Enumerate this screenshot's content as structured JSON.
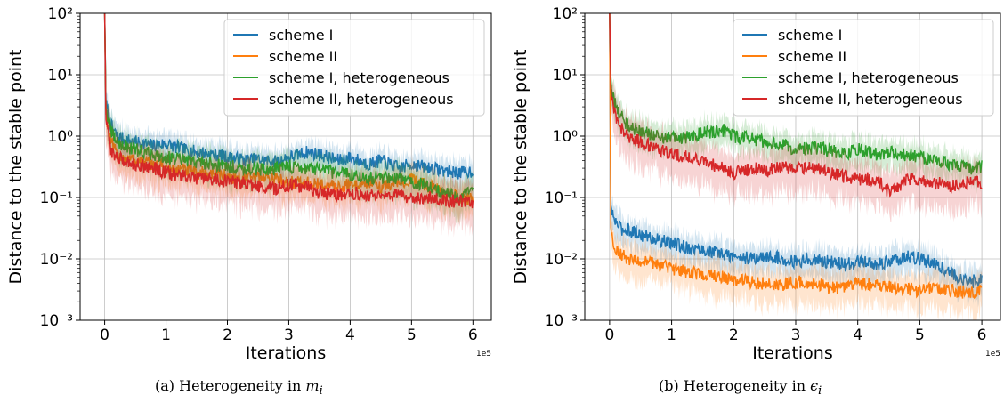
{
  "colors": {
    "scheme_I": "#1f77b4",
    "scheme_II": "#ff7f0e",
    "scheme_I_het": "#2ca02c",
    "scheme_II_het": "#d62728"
  },
  "captions": [
    {
      "prefix": "(a)  Heterogeneity in ",
      "var": "m",
      "sub": "i"
    },
    {
      "prefix": "(b)  Heterogeneity in ",
      "var": "ϵ",
      "sub": "i"
    }
  ],
  "chart_data": [
    {
      "type": "line",
      "xlabel": "Iterations",
      "ylabel": "Distance to the stable point",
      "x_offset_label": "1e5",
      "xlim": [
        -0.4,
        6.3
      ],
      "ylim_log10": [
        -3,
        2
      ],
      "yscale": "log",
      "grid": true,
      "legend_position": "top-right",
      "x_ticks": [
        0,
        1,
        2,
        3,
        4,
        5,
        6
      ],
      "x_tick_labels": [
        "0",
        "1",
        "2",
        "3",
        "4",
        "5",
        "6"
      ],
      "y_ticks_log10": [
        -3,
        -2,
        -1,
        0,
        1,
        2
      ],
      "y_tick_labels": [
        "10⁻³",
        "10⁻²",
        "10⁻¹",
        "10⁰",
        "10¹",
        "10²"
      ],
      "series": [
        {
          "name": "scheme I",
          "color_key": "scheme_I",
          "band": 0.18,
          "x": [
            0,
            0.02,
            0.05,
            0.1,
            0.2,
            0.3,
            0.5,
            0.8,
            1.0,
            1.3,
            1.5,
            1.8,
            2.0,
            2.3,
            2.5,
            2.8,
            3.0,
            3.3,
            3.5,
            3.8,
            4.0,
            4.3,
            4.5,
            4.8,
            5.0,
            5.3,
            5.5,
            5.8,
            6.0
          ],
          "y": [
            100,
            3.5,
            2.5,
            1.5,
            1.0,
            0.9,
            0.8,
            0.7,
            0.75,
            0.6,
            0.55,
            0.5,
            0.45,
            0.4,
            0.42,
            0.38,
            0.45,
            0.55,
            0.5,
            0.4,
            0.45,
            0.35,
            0.4,
            0.3,
            0.35,
            0.3,
            0.28,
            0.25,
            0.27
          ]
        },
        {
          "name": "scheme II",
          "color_key": "scheme_II",
          "band": 0.22,
          "x": [
            0,
            0.02,
            0.05,
            0.1,
            0.2,
            0.3,
            0.5,
            0.8,
            1.0,
            1.3,
            1.5,
            1.8,
            2.0,
            2.3,
            2.5,
            2.8,
            3.0,
            3.3,
            3.5,
            3.8,
            4.0,
            4.3,
            4.5,
            4.8,
            5.0,
            5.3,
            5.5,
            5.8,
            6.0
          ],
          "y": [
            100,
            2.5,
            1.5,
            0.8,
            0.5,
            0.45,
            0.4,
            0.35,
            0.3,
            0.28,
            0.25,
            0.25,
            0.22,
            0.2,
            0.22,
            0.2,
            0.18,
            0.17,
            0.16,
            0.15,
            0.16,
            0.17,
            0.15,
            0.18,
            0.2,
            0.15,
            0.12,
            0.1,
            0.09
          ]
        },
        {
          "name": "scheme I, heterogeneous",
          "color_key": "scheme_I_het",
          "band": 0.22,
          "x": [
            0,
            0.02,
            0.05,
            0.1,
            0.2,
            0.3,
            0.5,
            0.8,
            1.0,
            1.3,
            1.5,
            1.8,
            2.0,
            2.3,
            2.5,
            2.8,
            3.0,
            3.3,
            3.5,
            3.8,
            4.0,
            4.3,
            4.5,
            4.8,
            5.0,
            5.3,
            5.5,
            5.8,
            6.0
          ],
          "y": [
            100,
            3.0,
            2.0,
            1.2,
            0.8,
            0.7,
            0.6,
            0.5,
            0.45,
            0.4,
            0.38,
            0.35,
            0.32,
            0.3,
            0.28,
            0.3,
            0.32,
            0.3,
            0.28,
            0.25,
            0.24,
            0.2,
            0.22,
            0.2,
            0.18,
            0.15,
            0.12,
            0.1,
            0.14
          ]
        },
        {
          "name": "scheme II, heterogeneous",
          "color_key": "scheme_II_het",
          "band": 0.28,
          "x": [
            0,
            0.02,
            0.05,
            0.1,
            0.2,
            0.3,
            0.5,
            0.8,
            1.0,
            1.3,
            1.5,
            1.8,
            2.0,
            2.3,
            2.5,
            2.8,
            3.0,
            3.3,
            3.5,
            3.8,
            4.0,
            4.3,
            4.5,
            4.8,
            5.0,
            5.3,
            5.5,
            5.8,
            6.0
          ],
          "y": [
            100,
            2.0,
            1.2,
            0.6,
            0.45,
            0.4,
            0.35,
            0.3,
            0.25,
            0.22,
            0.2,
            0.2,
            0.18,
            0.17,
            0.15,
            0.14,
            0.16,
            0.15,
            0.12,
            0.11,
            0.12,
            0.11,
            0.1,
            0.11,
            0.1,
            0.1,
            0.09,
            0.085,
            0.08
          ]
        }
      ]
    },
    {
      "type": "line",
      "xlabel": "Iterations",
      "ylabel": "Distance to the stable point",
      "x_offset_label": "1e5",
      "xlim": [
        -0.4,
        6.3
      ],
      "ylim_log10": [
        -3,
        2
      ],
      "yscale": "log",
      "grid": true,
      "legend_position": "top-right",
      "x_ticks": [
        0,
        1,
        2,
        3,
        4,
        5,
        6
      ],
      "x_tick_labels": [
        "0",
        "1",
        "2",
        "3",
        "4",
        "5",
        "6"
      ],
      "y_ticks_log10": [
        -3,
        -2,
        -1,
        0,
        1,
        2
      ],
      "y_tick_labels": [
        "10⁻³",
        "10⁻²",
        "10⁻¹",
        "10⁰",
        "10¹",
        "10²"
      ],
      "series": [
        {
          "name": "scheme I",
          "color_key": "scheme_I",
          "band": 0.2,
          "x": [
            0,
            0.02,
            0.05,
            0.1,
            0.2,
            0.3,
            0.5,
            0.8,
            1.0,
            1.3,
            1.5,
            1.8,
            2.0,
            2.3,
            2.5,
            2.8,
            3.0,
            3.3,
            3.5,
            3.8,
            4.0,
            4.3,
            4.5,
            4.8,
            5.0,
            5.3,
            5.5,
            5.8,
            6.0
          ],
          "y": [
            100,
            0.07,
            0.05,
            0.04,
            0.03,
            0.03,
            0.025,
            0.02,
            0.018,
            0.015,
            0.014,
            0.012,
            0.011,
            0.01,
            0.011,
            0.01,
            0.009,
            0.01,
            0.009,
            0.008,
            0.009,
            0.008,
            0.009,
            0.011,
            0.01,
            0.008,
            0.006,
            0.004,
            0.005
          ]
        },
        {
          "name": "scheme II",
          "color_key": "scheme_II",
          "band": 0.25,
          "x": [
            0,
            0.02,
            0.05,
            0.1,
            0.2,
            0.3,
            0.5,
            0.8,
            1.0,
            1.3,
            1.5,
            1.8,
            2.0,
            2.3,
            2.5,
            2.8,
            3.0,
            3.3,
            3.5,
            3.8,
            4.0,
            4.3,
            4.5,
            4.8,
            5.0,
            5.3,
            5.5,
            5.8,
            6.0
          ],
          "y": [
            100,
            0.03,
            0.02,
            0.015,
            0.012,
            0.01,
            0.009,
            0.008,
            0.007,
            0.006,
            0.0055,
            0.005,
            0.0045,
            0.0042,
            0.004,
            0.0038,
            0.0042,
            0.004,
            0.0035,
            0.0034,
            0.004,
            0.0038,
            0.0035,
            0.0032,
            0.003,
            0.0032,
            0.003,
            0.0028,
            0.003
          ]
        },
        {
          "name": "scheme I, heterogeneous",
          "color_key": "scheme_I_het",
          "band": 0.2,
          "x": [
            0,
            0.02,
            0.05,
            0.1,
            0.2,
            0.3,
            0.5,
            0.8,
            1.0,
            1.3,
            1.5,
            1.8,
            2.0,
            2.3,
            2.5,
            2.8,
            3.0,
            3.3,
            3.5,
            3.8,
            4.0,
            4.3,
            4.5,
            4.8,
            5.0,
            5.3,
            5.5,
            5.8,
            6.0
          ],
          "y": [
            100,
            8,
            5,
            3,
            2,
            1.5,
            1.2,
            1.0,
            0.9,
            1.0,
            1.1,
            1.3,
            1.0,
            0.9,
            0.8,
            0.7,
            0.6,
            0.65,
            0.6,
            0.5,
            0.6,
            0.5,
            0.55,
            0.5,
            0.45,
            0.4,
            0.35,
            0.3,
            0.32
          ]
        },
        {
          "name": "shceme II, heterogeneous",
          "color_key": "scheme_II_het",
          "band": 0.3,
          "x": [
            0,
            0.02,
            0.05,
            0.1,
            0.2,
            0.3,
            0.5,
            0.8,
            1.0,
            1.3,
            1.5,
            1.8,
            2.0,
            2.3,
            2.5,
            2.8,
            3.0,
            3.3,
            3.5,
            3.8,
            4.0,
            4.3,
            4.5,
            4.8,
            5.0,
            5.3,
            5.5,
            5.8,
            6.0
          ],
          "y": [
            100,
            6,
            3.5,
            2,
            1.3,
            1.0,
            0.8,
            0.6,
            0.5,
            0.45,
            0.4,
            0.3,
            0.25,
            0.3,
            0.28,
            0.3,
            0.3,
            0.32,
            0.25,
            0.22,
            0.2,
            0.2,
            0.12,
            0.2,
            0.18,
            0.17,
            0.15,
            0.18,
            0.17
          ]
        }
      ]
    }
  ]
}
